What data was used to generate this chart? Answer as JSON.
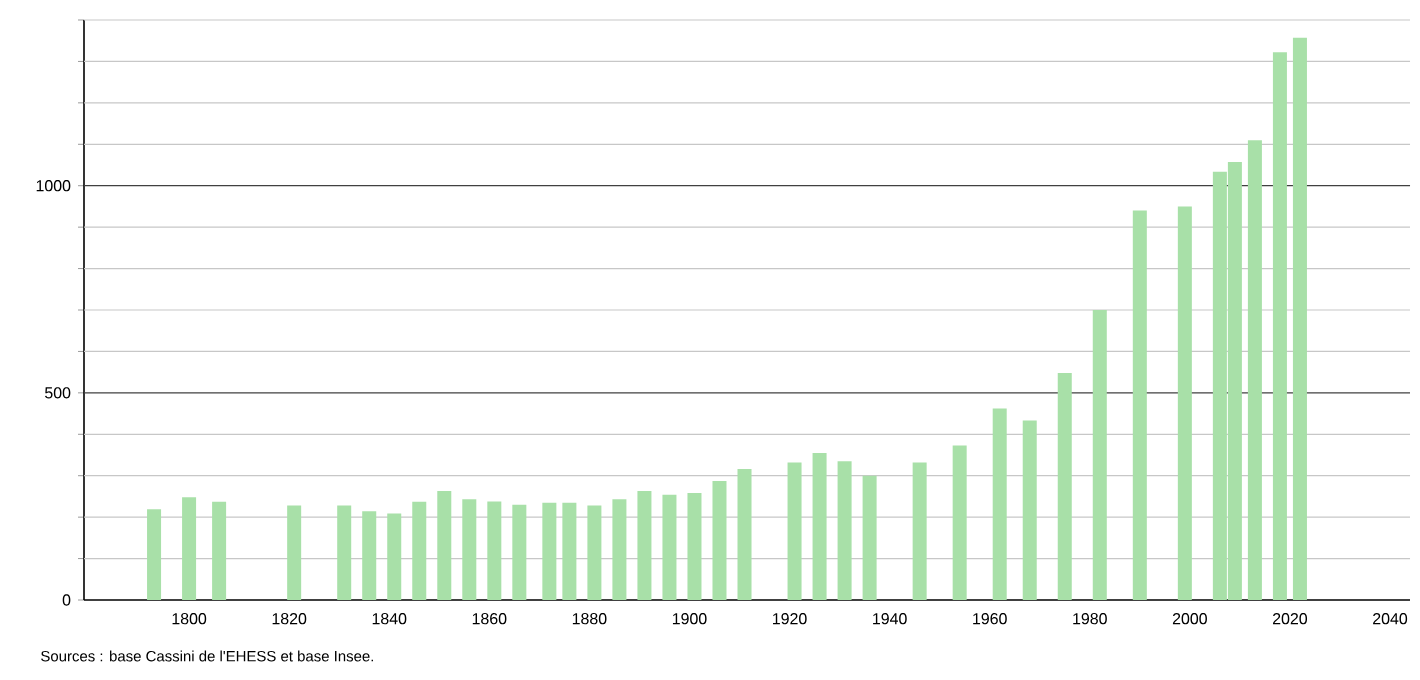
{
  "chart_data": {
    "type": "bar",
    "x": [
      1793,
      1800,
      1806,
      1821,
      1831,
      1836,
      1841,
      1846,
      1851,
      1856,
      1861,
      1866,
      1872,
      1876,
      1881,
      1886,
      1891,
      1896,
      1901,
      1906,
      1911,
      1921,
      1926,
      1931,
      1936,
      1946,
      1954,
      1962,
      1968,
      1975,
      1982,
      1990,
      1999,
      2006,
      2009,
      2013,
      2018,
      2022
    ],
    "values": [
      219,
      248,
      237,
      228,
      228,
      214,
      209,
      237,
      263,
      243,
      238,
      230,
      235,
      235,
      228,
      243,
      263,
      254,
      258,
      287,
      316,
      332,
      355,
      335,
      300,
      332,
      373,
      462,
      433,
      548,
      700,
      940,
      950,
      1034,
      1057,
      1110,
      1322,
      1357
    ],
    "color": "#a8e0a8",
    "xlim": [
      1779,
      2044
    ],
    "xticks": [
      1800,
      1820,
      1840,
      1860,
      1880,
      1900,
      1920,
      1940,
      1960,
      1980,
      2000,
      2020,
      2040
    ],
    "ylim": [
      0,
      1400
    ],
    "yticks": [
      0,
      {
        "value": 100,
        "label": null
      },
      {
        "value": 200,
        "label": null
      },
      {
        "value": 300,
        "label": null
      },
      {
        "value": 400,
        "label": null
      },
      500,
      {
        "value": 600,
        "label": null
      },
      {
        "value": 700,
        "label": null
      },
      {
        "value": 800,
        "label": null
      },
      {
        "value": 900,
        "label": null
      },
      1000,
      {
        "value": 1100,
        "label": null
      },
      {
        "value": 1200,
        "label": null
      },
      {
        "value": 1300,
        "label": null
      },
      {
        "value": 1400,
        "label": null
      }
    ],
    "grid": "y",
    "annotations": [
      "Sources : base Cassini de l'EHESS et base Insee."
    ]
  }
}
